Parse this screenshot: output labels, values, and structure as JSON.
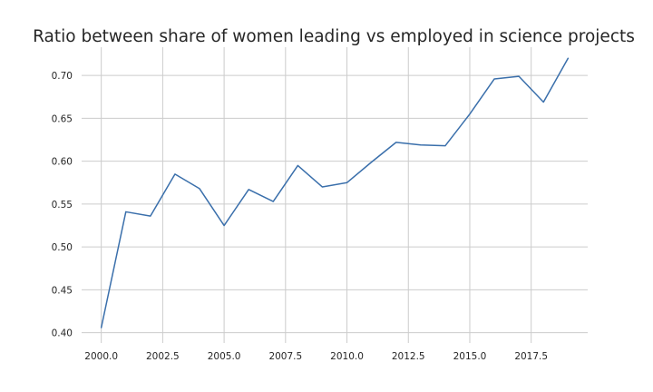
{
  "chart_data": {
    "type": "line",
    "title": "Ratio between share of women leading vs employed in science projects",
    "xlabel": "",
    "ylabel": "",
    "xlim": [
      1999.2,
      2019.8
    ],
    "ylim": [
      0.388,
      0.733
    ],
    "xticks": [
      2000.0,
      2002.5,
      2005.0,
      2007.5,
      2010.0,
      2012.5,
      2015.0,
      2017.5
    ],
    "xtick_labels": [
      "2000.0",
      "2002.5",
      "2005.0",
      "2007.5",
      "2010.0",
      "2012.5",
      "2015.0",
      "2017.5"
    ],
    "yticks": [
      0.4,
      0.45,
      0.5,
      0.55,
      0.6,
      0.65,
      0.7
    ],
    "ytick_labels": [
      "0.40",
      "0.45",
      "0.50",
      "0.55",
      "0.60",
      "0.65",
      "0.70"
    ],
    "grid": true,
    "series": [
      {
        "color": "#3a6fab",
        "x": [
          2000,
          2001,
          2002,
          2003,
          2004,
          2005,
          2006,
          2007,
          2008,
          2009,
          2010,
          2011,
          2012,
          2013,
          2014,
          2015,
          2016,
          2017,
          2018,
          2019
        ],
        "y": [
          0.406,
          0.541,
          0.536,
          0.585,
          0.568,
          0.525,
          0.567,
          0.553,
          0.595,
          0.57,
          0.575,
          0.599,
          0.622,
          0.619,
          0.618,
          0.655,
          0.696,
          0.699,
          0.669,
          0.72
        ]
      }
    ]
  }
}
